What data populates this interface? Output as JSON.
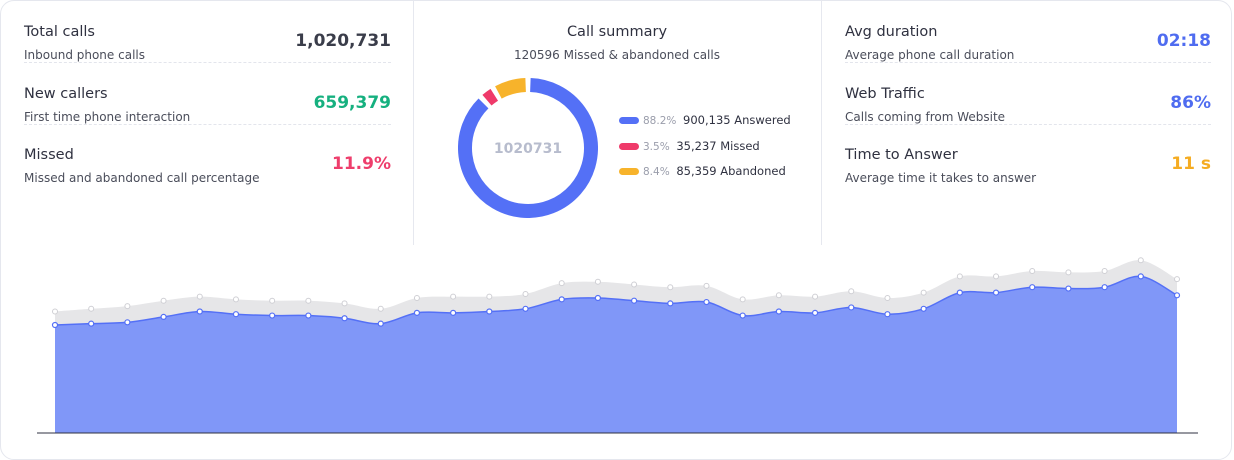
{
  "left_stats": [
    {
      "title": "Total calls",
      "subtitle": "Inbound phone calls",
      "value": "1,020,731",
      "color": "#3a3d4a"
    },
    {
      "title": "New callers",
      "subtitle": "First time phone interaction",
      "value": "659,379",
      "color": "#16b07f"
    },
    {
      "title": "Missed",
      "subtitle": "Missed and abandoned call percentage",
      "value": "11.9%",
      "color": "#ee3e6c"
    }
  ],
  "summary": {
    "title": "Call summary",
    "subtitle": "120596 Missed & abandoned calls",
    "center_value": "1020731",
    "segments": [
      {
        "percent": "88.2%",
        "count": "900,135",
        "label": "Answered",
        "fraction": 0.882,
        "color": "#5470f6"
      },
      {
        "percent": "3.5%",
        "count": "35,237",
        "label": "Missed",
        "fraction": 0.035,
        "color": "#ef3a6a"
      },
      {
        "percent": "8.4%",
        "count": "85,359",
        "label": "Abandoned",
        "fraction": 0.084,
        "color": "#f7b32b"
      }
    ]
  },
  "right_stats": [
    {
      "title": "Avg duration",
      "subtitle": "Average phone call duration",
      "value": "02:18",
      "color": "#4f6cf0"
    },
    {
      "title": "Web Traffic",
      "subtitle": "Calls coming from Website",
      "value": "86%",
      "color": "#4f6cf0"
    },
    {
      "title": "Time to Answer",
      "subtitle": "Average time it takes to answer",
      "value": "11 s",
      "color": "#f5ac22"
    }
  ],
  "chart_data": {
    "type": "area",
    "title": "",
    "xlabel": "",
    "ylabel": "",
    "ylim": [
      0,
      140
    ],
    "grid": false,
    "series": [
      {
        "values": [
          80,
          81,
          82,
          86,
          90,
          88,
          87,
          87,
          85,
          81,
          89,
          89,
          90,
          92,
          99,
          100,
          98,
          96,
          97,
          87,
          90,
          89,
          93,
          88,
          92,
          104,
          104,
          108,
          107,
          108,
          116,
          102
        ],
        "color": "#8097f8"
      },
      {
        "values": [
          90,
          92,
          94,
          98,
          101,
          99,
          98,
          98,
          96,
          92,
          100,
          101,
          101,
          103,
          111,
          112,
          110,
          108,
          109,
          99,
          102,
          101,
          105,
          100,
          104,
          116,
          116,
          120,
          119,
          120,
          128,
          114
        ],
        "color": "#e6e6e8"
      }
    ]
  }
}
